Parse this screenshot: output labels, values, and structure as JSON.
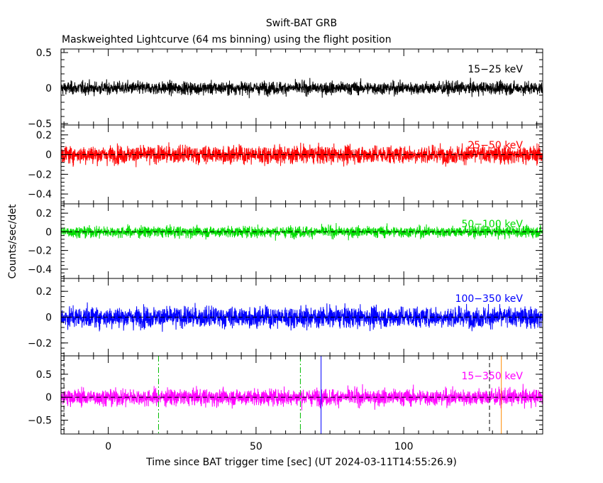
{
  "title": "Swift-BAT GRB",
  "subtitle": "Maskweighted Lightcurve (64 ms binning) using the flight position",
  "ylabel": "Counts/sec/det",
  "xlabel": "Time since BAT trigger time [sec] (UT 2024-03-11T14:55:26.9)",
  "chart_data": {
    "type": "line",
    "x_range": [
      -16,
      147
    ],
    "x_ticks": [
      0,
      50,
      100
    ],
    "x_tick_labels": [
      "0",
      "50",
      "100"
    ],
    "bin_seconds": 0.064,
    "panels": [
      {
        "name": "15-25 keV",
        "label": "15−25 keV",
        "color": "#000000",
        "ylim": [
          -0.52,
          0.55
        ],
        "y_ticks": [
          -0.5,
          0,
          0.5
        ],
        "y_tick_labels": [
          "−0.5",
          "0",
          "0.5"
        ],
        "noise_sigma": 0.045,
        "zero_line": false
      },
      {
        "name": "25-50 keV",
        "label": "25−50 keV",
        "color": "#ff0000",
        "ylim": [
          -0.5,
          0.3
        ],
        "y_ticks": [
          -0.4,
          -0.2,
          0,
          0.2
        ],
        "y_tick_labels": [
          "−0.4",
          "−0.2",
          "0",
          "0.2"
        ],
        "noise_sigma": 0.045,
        "zero_line": true
      },
      {
        "name": "50-100 keV",
        "label": "50−100 keV",
        "color": "#00dd00",
        "ylim": [
          -0.5,
          0.3
        ],
        "y_ticks": [
          -0.4,
          -0.2,
          0,
          0.2
        ],
        "y_tick_labels": [
          "−0.4",
          "−0.2",
          "0",
          "0.2"
        ],
        "noise_sigma": 0.03,
        "zero_line": true
      },
      {
        "name": "100-350 keV",
        "label": "100−350 keV",
        "color": "#0000ff",
        "ylim": [
          -0.3,
          0.3
        ],
        "y_ticks": [
          -0.2,
          0,
          0.2
        ],
        "y_tick_labels": [
          "−0.2",
          "0",
          "0.2"
        ],
        "noise_sigma": 0.04,
        "zero_line": true
      },
      {
        "name": "15-350 keV",
        "label": "15−350 keV",
        "color": "#ff00ff",
        "ylim": [
          -0.8,
          0.9
        ],
        "y_ticks": [
          -0.5,
          0,
          0.5
        ],
        "y_tick_labels": [
          "−0.5",
          "0",
          "0.5"
        ],
        "noise_sigma": 0.09,
        "zero_line": true
      }
    ],
    "markers": [
      {
        "x": -15,
        "color": "#000000",
        "style": "dashed"
      },
      {
        "x": 17,
        "color": "#00bb00",
        "style": "dashdot"
      },
      {
        "x": 65,
        "color": "#00bb00",
        "style": "dashdot"
      },
      {
        "x": 72,
        "color": "#0000ff",
        "style": "solid"
      },
      {
        "x": 129,
        "color": "#000000",
        "style": "dashed"
      },
      {
        "x": 133,
        "color": "#ff8800",
        "style": "solid"
      }
    ]
  }
}
